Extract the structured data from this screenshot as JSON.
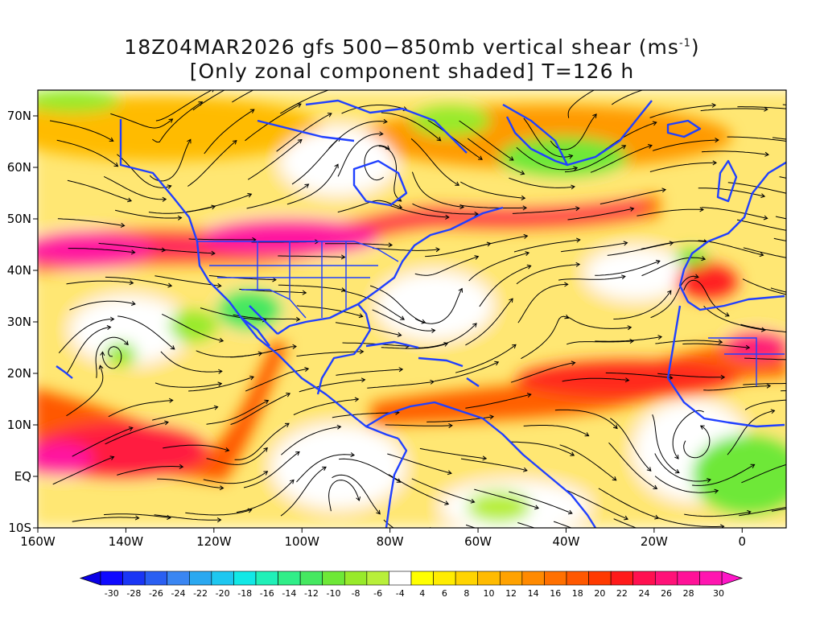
{
  "title": {
    "line1_prefix": "18Z04MAR2026 gfs 500−850mb vertical shear (ms",
    "line1_exp": "-1",
    "line1_suffix": ")",
    "line2": "[Only zonal component shaded] T=126 h"
  },
  "axes": {
    "lon_ticks": [
      "160W",
      "140W",
      "120W",
      "100W",
      "80W",
      "60W",
      "40W",
      "20W",
      "0"
    ],
    "lat_ticks": [
      "70N",
      "60N",
      "50N",
      "40N",
      "30N",
      "20N",
      "10N",
      "EQ",
      "10S"
    ]
  },
  "colorbar": {
    "labels": [
      "-30",
      "-28",
      "-26",
      "-24",
      "-22",
      "-20",
      "-18",
      "-16",
      "-14",
      "-12",
      "-10",
      "-8",
      "-6",
      "-4",
      "4",
      "6",
      "8",
      "10",
      "12",
      "14",
      "16",
      "18",
      "20",
      "22",
      "24",
      "26",
      "28",
      "30"
    ],
    "colors": [
      "#0f0aff",
      "#1a36f5",
      "#2a5ff2",
      "#3a86f2",
      "#2aa8f0",
      "#1ec7f0",
      "#12e8e6",
      "#20f0b8",
      "#30ee88",
      "#45e860",
      "#6ee837",
      "#98ea2a",
      "#b8ef3a",
      "#ffffff",
      "#ffff00",
      "#ffec00",
      "#ffd400",
      "#ffbb00",
      "#ffa200",
      "#ff8a00",
      "#ff7000",
      "#ff5800",
      "#ff3a00",
      "#ff1a1a",
      "#ff1050",
      "#ff1278",
      "#ff1298",
      "#ff16b0"
    ],
    "low_arrow_color": "#0a00e6",
    "high_arrow_color": "#ff16c8"
  },
  "map": {
    "projection": "lat-lon",
    "lon_range": [
      -160,
      10
    ],
    "lat_range": [
      -10,
      75
    ],
    "coastline_color": "#2040ff",
    "streamline_color": "#000000"
  }
}
